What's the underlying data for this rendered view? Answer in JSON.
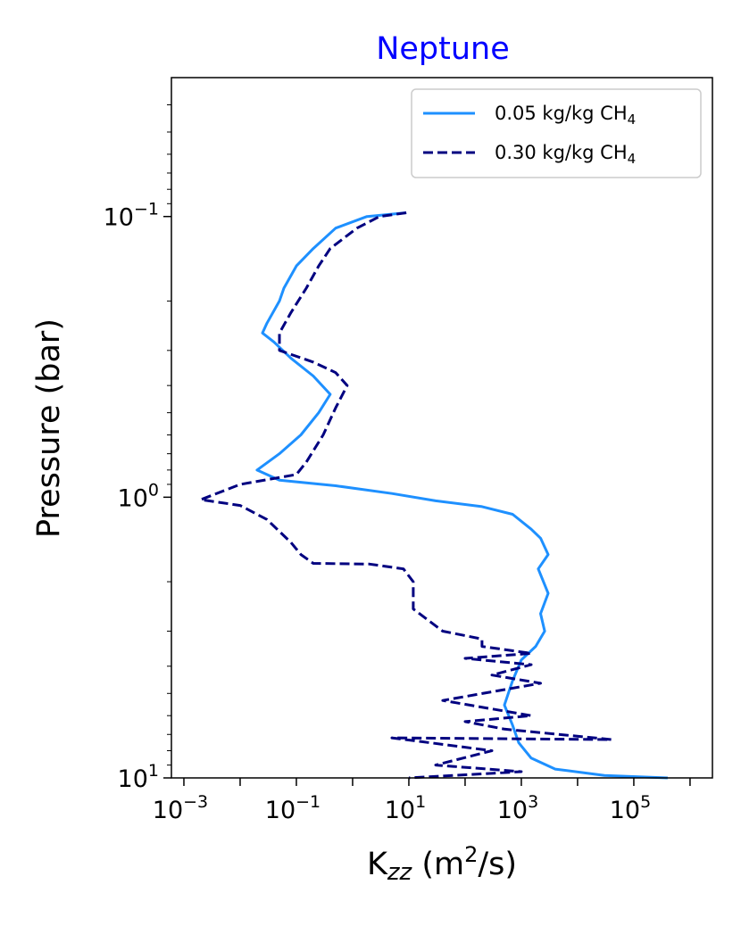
{
  "chart_data": {
    "type": "line",
    "title": "Neptune",
    "title_color": "#0000ff",
    "xlabel": {
      "main": "K",
      "sub": "zz",
      "rest1": " (m",
      "sup": "2",
      "rest2": "/s)"
    },
    "ylabel": "Pressure (bar)",
    "xscale": "log",
    "yscale": "log",
    "yinverted": true,
    "xlim": [
      0.0006,
      2500000
    ],
    "ylim": [
      10,
      0.032
    ],
    "xticks": [
      {
        "value": 0.001,
        "base": "10",
        "exp": "−3"
      },
      {
        "value": 0.1,
        "base": "10",
        "exp": "−1"
      },
      {
        "value": 10,
        "base": "10",
        "exp": "1"
      },
      {
        "value": 1000,
        "base": "10",
        "exp": "3"
      },
      {
        "value": 100000,
        "base": "10",
        "exp": "5"
      }
    ],
    "yticks": [
      {
        "value": 0.1,
        "base": "10",
        "exp": "−1"
      },
      {
        "value": 1,
        "base": "10",
        "exp": "0"
      },
      {
        "value": 10,
        "base": "10",
        "exp": "1"
      }
    ],
    "legend_position": "top-right",
    "series": [
      {
        "name": "0.05 kg/kg CH",
        "name_sub": "4",
        "color": "#1e90ff",
        "dash": "solid",
        "points": [
          [
            9,
            0.097
          ],
          [
            1.8,
            0.1
          ],
          [
            0.5,
            0.11
          ],
          [
            0.2,
            0.13
          ],
          [
            0.1,
            0.15
          ],
          [
            0.06,
            0.18
          ],
          [
            0.05,
            0.2
          ],
          [
            0.03,
            0.24
          ],
          [
            0.025,
            0.26
          ],
          [
            0.04,
            0.28
          ],
          [
            0.08,
            0.32
          ],
          [
            0.2,
            0.37
          ],
          [
            0.4,
            0.43
          ],
          [
            0.25,
            0.5
          ],
          [
            0.12,
            0.6
          ],
          [
            0.05,
            0.7
          ],
          [
            0.02,
            0.8
          ],
          [
            0.05,
            0.87
          ],
          [
            0.5,
            0.91
          ],
          [
            5,
            0.97
          ],
          [
            30,
            1.03
          ],
          [
            200,
            1.08
          ],
          [
            700,
            1.15
          ],
          [
            1500,
            1.3
          ],
          [
            2200,
            1.4
          ],
          [
            3000,
            1.6
          ],
          [
            2000,
            1.8
          ],
          [
            3000,
            2.2
          ],
          [
            2200,
            2.6
          ],
          [
            2600,
            3.0
          ],
          [
            1800,
            3.4
          ],
          [
            1000,
            3.8
          ],
          [
            700,
            4.5
          ],
          [
            500,
            5.5
          ],
          [
            700,
            6.5
          ],
          [
            900,
            7.5
          ],
          [
            1500,
            8.5
          ],
          [
            4000,
            9.3
          ],
          [
            30000,
            9.8
          ],
          [
            400000,
            10
          ]
        ]
      },
      {
        "name": "0.30 kg/kg CH",
        "name_sub": "4",
        "color": "#000080",
        "dash": "dashed",
        "points": [
          [
            9,
            0.097
          ],
          [
            3,
            0.1
          ],
          [
            1.2,
            0.11
          ],
          [
            0.4,
            0.13
          ],
          [
            0.25,
            0.15
          ],
          [
            0.15,
            0.18
          ],
          [
            0.08,
            0.22
          ],
          [
            0.05,
            0.26
          ],
          [
            0.05,
            0.3
          ],
          [
            0.2,
            0.33
          ],
          [
            0.5,
            0.36
          ],
          [
            0.8,
            0.4
          ],
          [
            0.5,
            0.48
          ],
          [
            0.3,
            0.6
          ],
          [
            0.15,
            0.75
          ],
          [
            0.1,
            0.83
          ],
          [
            0.01,
            0.9
          ],
          [
            0.002,
            1.02
          ],
          [
            0.01,
            1.07
          ],
          [
            0.03,
            1.2
          ],
          [
            0.08,
            1.45
          ],
          [
            0.12,
            1.6
          ],
          [
            0.2,
            1.72
          ],
          [
            2,
            1.73
          ],
          [
            8,
            1.8
          ],
          [
            12,
            2.0
          ],
          [
            12,
            2.5
          ],
          [
            40,
            3.0
          ],
          [
            200,
            3.2
          ],
          [
            200,
            3.4
          ],
          [
            1500,
            3.6
          ],
          [
            100,
            3.75
          ],
          [
            1500,
            3.95
          ],
          [
            300,
            4.3
          ],
          [
            2200,
            4.6
          ],
          [
            40,
            5.3
          ],
          [
            1500,
            6.0
          ],
          [
            100,
            6.3
          ],
          [
            500,
            6.7
          ],
          [
            40000,
            7.3
          ],
          [
            5,
            7.2
          ],
          [
            300,
            8.0
          ],
          [
            30,
            9.0
          ],
          [
            1000,
            9.5
          ],
          [
            10,
            10.0
          ]
        ]
      }
    ]
  }
}
